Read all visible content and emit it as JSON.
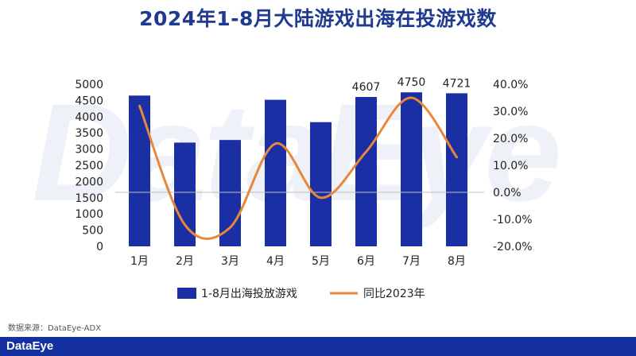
{
  "title": "2024年1-8月大陆游戏出海在投游戏数",
  "watermark": "DataEye",
  "source": "数据来源：DataEye-ADX",
  "footer_logo": "DataEye",
  "colors": {
    "bar": "#1a2fa3",
    "line": "#e8873a",
    "title": "#1f3a8f",
    "footer": "#1530a0"
  },
  "chart_data": {
    "type": "bar",
    "categories": [
      "1月",
      "2月",
      "3月",
      "4月",
      "5月",
      "6月",
      "7月",
      "8月"
    ],
    "series": [
      {
        "name": "1-8月出海投放游戏",
        "type": "bar",
        "axis": "left",
        "values": [
          4650,
          3200,
          3280,
          4520,
          3830,
          4607,
          4750,
          4721
        ],
        "data_labels": [
          "",
          "",
          "",
          "",
          "",
          "4607",
          "4750",
          "4721"
        ]
      },
      {
        "name": "同比2023年",
        "type": "line",
        "axis": "right",
        "values": [
          32,
          -12,
          -13,
          18,
          -2,
          15,
          35,
          13
        ]
      }
    ],
    "y_left": {
      "ylim": [
        0,
        5000
      ],
      "ticks": [
        "0",
        "500",
        "1000",
        "1500",
        "2000",
        "2500",
        "3000",
        "3500",
        "4000",
        "4500",
        "5000"
      ]
    },
    "y_right": {
      "ylim": [
        -20,
        40
      ],
      "ticks": [
        "-20.0%",
        "-10.0%",
        "0.0%",
        "10.0%",
        "20.0%",
        "30.0%",
        "40.0%"
      ]
    },
    "legend_position": "bottom",
    "grid": false
  }
}
